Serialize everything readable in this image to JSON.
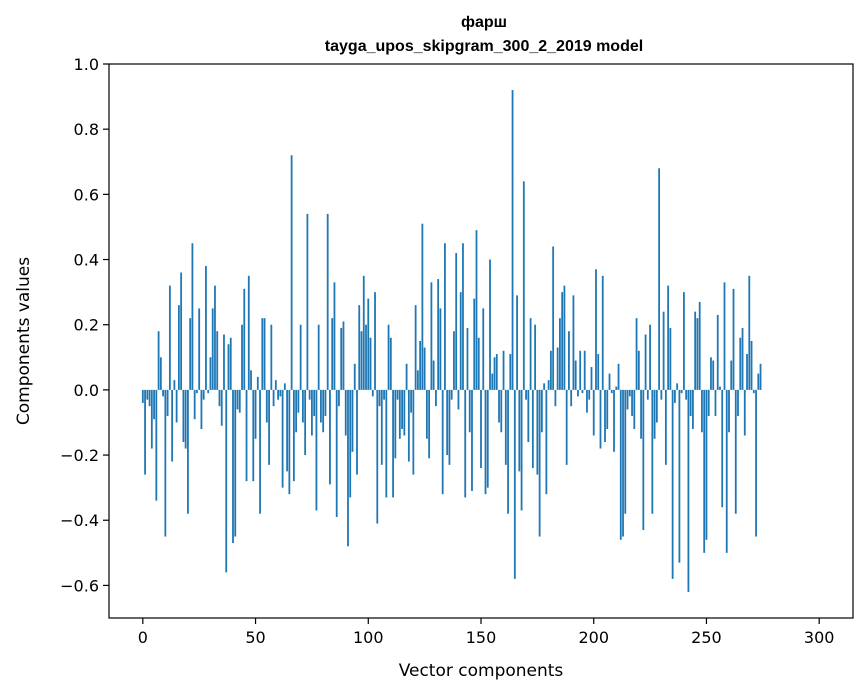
{
  "chart_data": {
    "type": "bar",
    "title": "фарш",
    "subtitle": "tayga_upos_skipgram_300_2_2019 model",
    "xlabel": "Vector components",
    "ylabel": "Components values",
    "xlim": [
      -15,
      315
    ],
    "ylim": [
      -0.7,
      1.0
    ],
    "xticks": [
      0,
      50,
      100,
      150,
      200,
      250,
      300
    ],
    "yticks": [
      -0.6,
      -0.4,
      -0.2,
      0.0,
      0.2,
      0.4,
      0.6,
      0.8,
      1.0
    ],
    "ytick_labels": [
      "−0.6",
      "−0.4",
      "−0.2",
      "0.0",
      "0.2",
      "0.4",
      "0.6",
      "0.8",
      "1.0"
    ],
    "xtick_labels": [
      "0",
      "50",
      "100",
      "150",
      "200",
      "250",
      "300"
    ],
    "grid": false,
    "bar_color": "#1f77b4",
    "values": [
      -0.04,
      -0.26,
      -0.03,
      -0.05,
      -0.18,
      -0.09,
      -0.34,
      0.18,
      0.1,
      -0.02,
      -0.45,
      -0.08,
      0.32,
      -0.22,
      0.03,
      -0.1,
      0.26,
      0.36,
      -0.16,
      -0.18,
      -0.38,
      0.22,
      0.45,
      -0.09,
      -0.01,
      0.25,
      -0.12,
      -0.03,
      0.38,
      -0.01,
      0.1,
      0.25,
      0.32,
      0.18,
      -0.05,
      -0.11,
      0.17,
      -0.56,
      0.14,
      0.16,
      -0.47,
      -0.45,
      -0.06,
      -0.07,
      0.2,
      0.31,
      -0.28,
      0.35,
      0.06,
      -0.28,
      -0.15,
      0.04,
      -0.38,
      0.22,
      0.22,
      -0.1,
      -0.23,
      0.2,
      -0.05,
      0.03,
      -0.03,
      -0.02,
      -0.3,
      0.02,
      -0.25,
      -0.32,
      0.72,
      -0.28,
      -0.13,
      -0.07,
      0.2,
      -0.1,
      -0.2,
      0.54,
      -0.03,
      -0.14,
      -0.08,
      -0.37,
      0.2,
      -0.1,
      -0.13,
      -0.08,
      0.54,
      -0.29,
      0.22,
      0.33,
      -0.39,
      -0.05,
      0.19,
      0.21,
      -0.14,
      -0.48,
      -0.33,
      -0.19,
      0.08,
      -0.26,
      0.26,
      0.18,
      0.35,
      0.2,
      0.28,
      0.16,
      -0.02,
      0.3,
      -0.41,
      -0.05,
      -0.23,
      -0.03,
      -0.33,
      0.2,
      0.16,
      -0.33,
      -0.21,
      -0.03,
      -0.15,
      -0.12,
      -0.14,
      0.08,
      -0.22,
      -0.07,
      -0.26,
      0.26,
      0.06,
      0.15,
      0.51,
      0.13,
      -0.15,
      -0.21,
      0.33,
      0.09,
      -0.05,
      0.34,
      0.25,
      -0.32,
      0.45,
      -0.2,
      -0.23,
      -0.03,
      0.18,
      0.42,
      -0.06,
      0.3,
      0.45,
      -0.33,
      0.19,
      -0.13,
      -0.31,
      0.28,
      0.49,
      0.16,
      -0.24,
      0.25,
      -0.32,
      -0.3,
      0.4,
      0.05,
      0.1,
      0.11,
      -0.1,
      -0.13,
      0.12,
      -0.23,
      -0.38,
      0.11,
      0.92,
      -0.58,
      0.29,
      -0.25,
      -0.37,
      0.64,
      -0.03,
      -0.16,
      0.22,
      -0.24,
      0.2,
      -0.26,
      -0.45,
      -0.13,
      0.02,
      -0.32,
      0.03,
      0.12,
      0.44,
      -0.05,
      0.13,
      0.22,
      0.3,
      0.32,
      -0.23,
      0.18,
      -0.05,
      0.29,
      0.09,
      -0.02,
      0.12,
      -0.01,
      0.12,
      -0.07,
      -0.03,
      0.07,
      -0.14,
      0.37,
      0.11,
      -0.18,
      0.35,
      -0.16,
      -0.12,
      0.05,
      -0.01,
      -0.19,
      0.01,
      0.08,
      -0.46,
      -0.45,
      -0.38,
      -0.06,
      -0.02,
      -0.08,
      -0.12,
      0.22,
      0.12,
      -0.15,
      -0.43,
      0.17,
      -0.03,
      0.2,
      -0.38,
      -0.15,
      -0.1,
      0.68,
      -0.03,
      0.24,
      -0.23,
      0.32,
      0.19,
      -0.58,
      -0.04,
      0.02,
      -0.53,
      -0.01,
      0.3,
      -0.03,
      -0.62,
      -0.08,
      -0.12,
      0.24,
      0.22,
      0.27,
      -0.13,
      -0.5,
      -0.46,
      -0.08,
      0.1,
      0.09,
      -0.08,
      0.23,
      0.01,
      -0.36,
      0.33,
      -0.5,
      -0.13,
      0.09,
      0.31,
      -0.38,
      -0.08,
      0.16,
      0.19,
      -0.14,
      0.11,
      0.35,
      0.15,
      -0.01,
      -0.45,
      0.05,
      0.08
    ]
  }
}
